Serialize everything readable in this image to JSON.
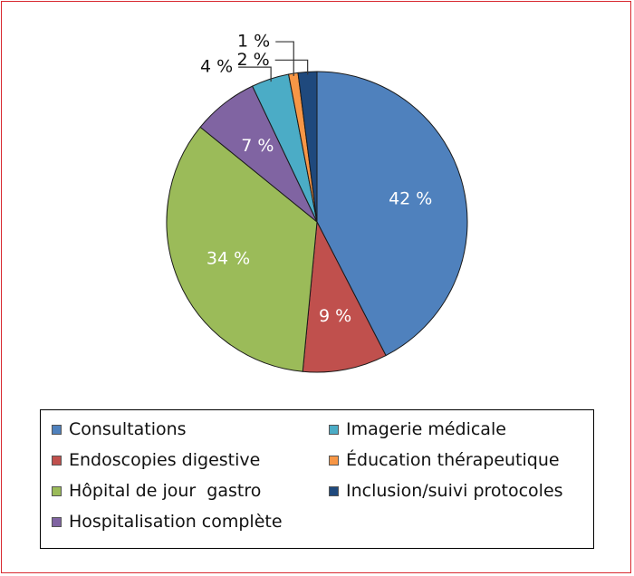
{
  "chart_data": {
    "type": "pie",
    "slices": [
      {
        "label": "Consultations",
        "value": 42,
        "display": "42 %",
        "color": "#4f81bd"
      },
      {
        "label": "Endoscopies digestive",
        "value": 9,
        "display": "9 %",
        "color": "#c0504d"
      },
      {
        "label": "Hôpital de jour  gastro",
        "value": 34,
        "display": "34 %",
        "color": "#9bbb59"
      },
      {
        "label": "Hospitalisation complète",
        "value": 7,
        "display": "7 %",
        "color": "#8064a2"
      },
      {
        "label": "Imagerie médicale",
        "value": 4,
        "display": "4 %",
        "color": "#4bacc6"
      },
      {
        "label": "Éducation thérapeutique",
        "value": 1,
        "display": "1 %",
        "color": "#f79646"
      },
      {
        "label": "Inclusion/suivi protocoles",
        "value": 2,
        "display": "2 %",
        "color": "#1f497d"
      }
    ],
    "legend_placement": "bottom"
  }
}
